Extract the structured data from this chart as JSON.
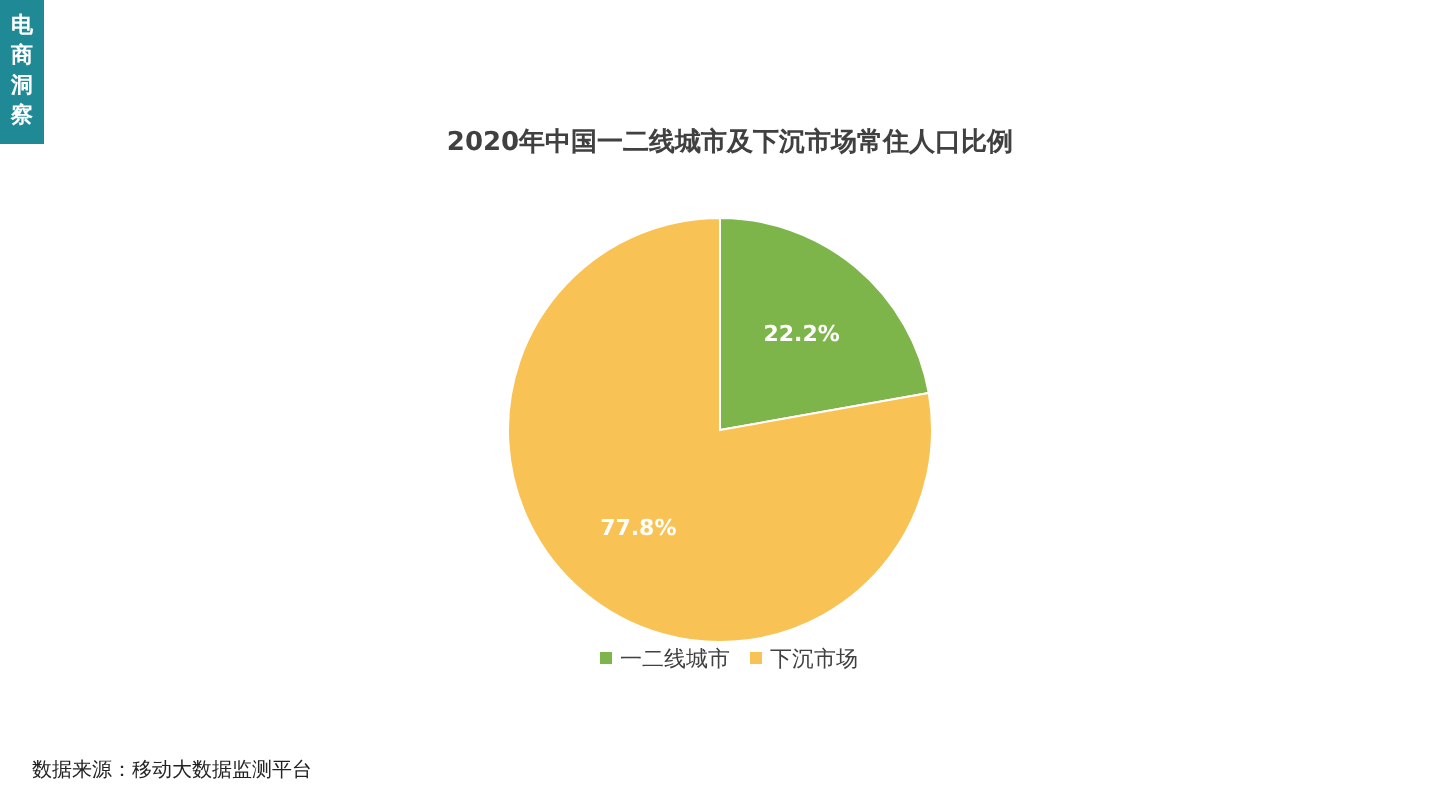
{
  "chart_data": {
    "type": "pie",
    "title": "2020年中国一二线城市及下沉市场常住人口比例",
    "categories": [
      "一二线城市",
      "下沉市场"
    ],
    "values": [
      22.2,
      77.8
    ],
    "colors": [
      "#7db54a",
      "#f8c254"
    ],
    "value_labels": [
      "22.2%",
      "77.8%"
    ],
    "legend": "bottom",
    "annotations": [
      "电商洞察",
      "数据来源：移动大数据监测平台"
    ]
  }
}
